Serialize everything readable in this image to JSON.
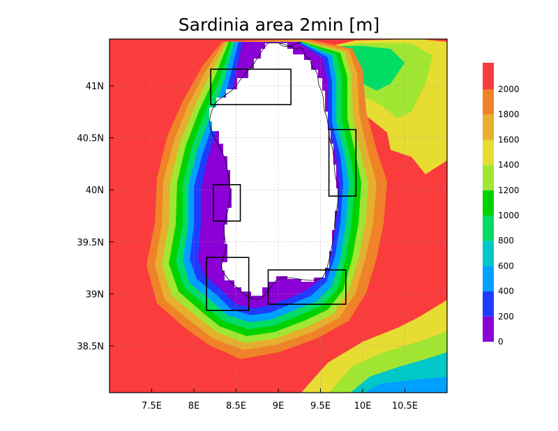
{
  "title": "Sardinia area 2min [m]",
  "x_axis": {
    "ticks": [
      "7.5E",
      "8E",
      "8.5E",
      "9E",
      "9.5E",
      "10E",
      "10.5E"
    ],
    "values": [
      7.5,
      8.0,
      8.5,
      9.0,
      9.5,
      10.0,
      10.5
    ],
    "range": [
      7.0,
      11.0
    ]
  },
  "y_axis": {
    "ticks": [
      "38.5N",
      "39N",
      "39.5N",
      "40N",
      "40.5N",
      "41N"
    ],
    "values": [
      38.5,
      39.0,
      39.5,
      40.0,
      40.5,
      41.0
    ],
    "range": [
      38.05,
      41.45
    ]
  },
  "colorbar": {
    "labels": [
      "0",
      "200",
      "400",
      "600",
      "800",
      "1000",
      "1200",
      "1400",
      "1600",
      "1800",
      "2000"
    ],
    "colors": [
      "#8b00d6",
      "#1e3cff",
      "#00a0ff",
      "#00c8c8",
      "#00dc64",
      "#00d200",
      "#a0e632",
      "#e6dc32",
      "#e6af2d",
      "#f08228",
      "#fa3c3c"
    ]
  },
  "colors": {
    "land": "#ffffff",
    "deep_sea": "#fa3c3c"
  },
  "domains": [
    {
      "lon": [
        8.2,
        9.15
      ],
      "lat": [
        40.82,
        41.16
      ]
    },
    {
      "lon": [
        9.6,
        9.92
      ],
      "lat": [
        39.94,
        40.58
      ]
    },
    {
      "lon": [
        8.23,
        8.55
      ],
      "lat": [
        39.7,
        40.05
      ]
    },
    {
      "lon": [
        8.15,
        8.65
      ],
      "lat": [
        38.84,
        39.35
      ]
    },
    {
      "lon": [
        8.88,
        9.8
      ],
      "lat": [
        38.9,
        39.23
      ]
    }
  ]
}
